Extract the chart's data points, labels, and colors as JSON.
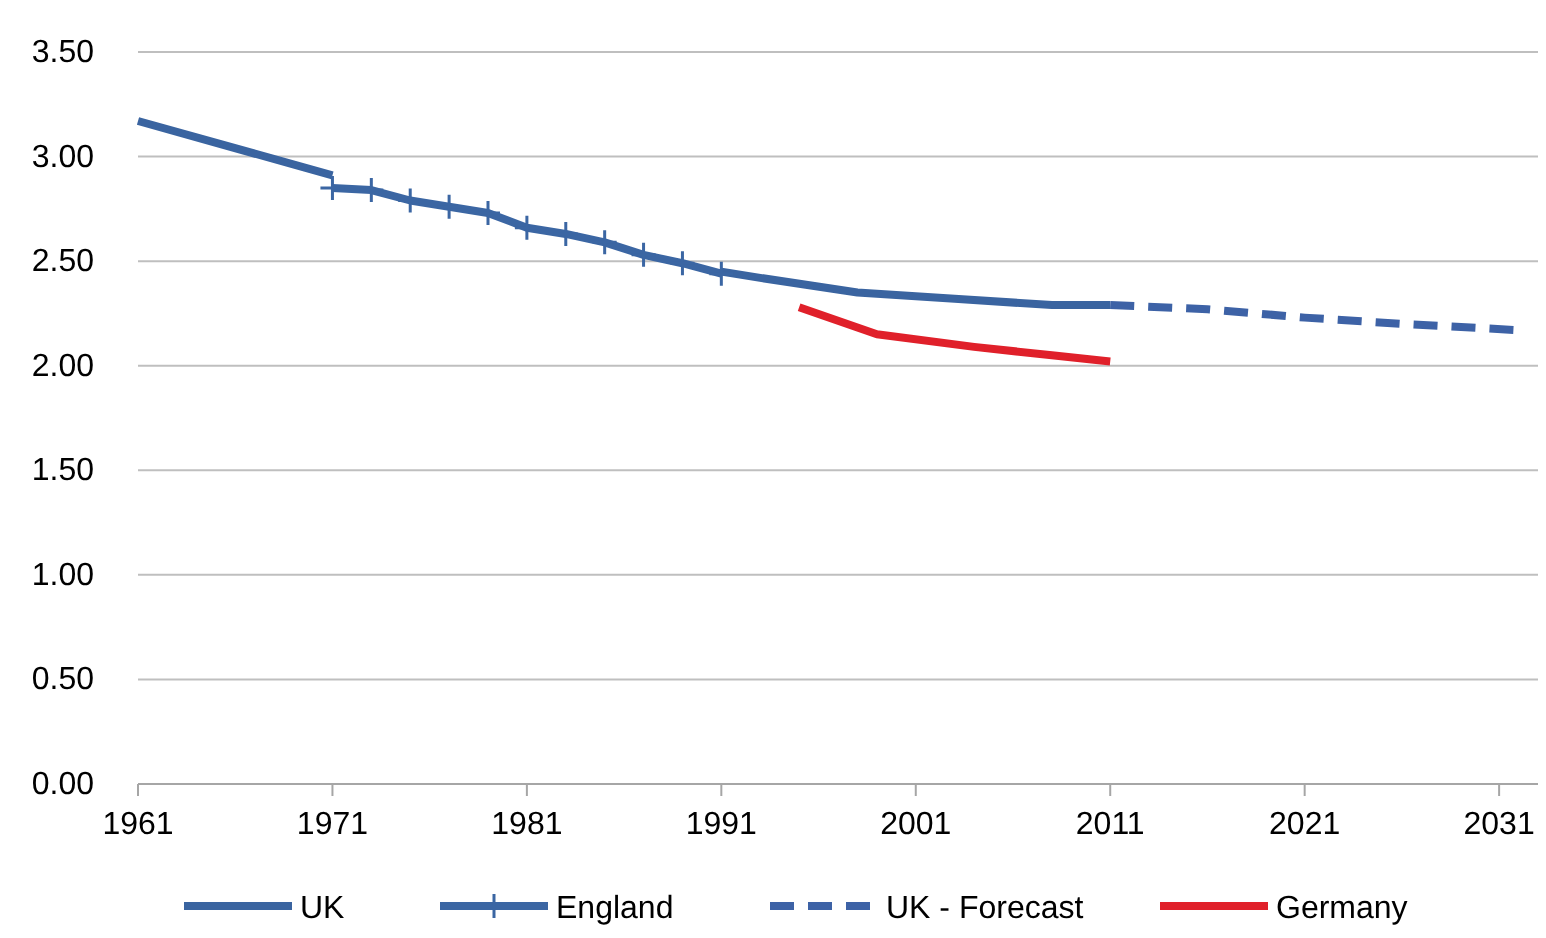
{
  "chart_data": {
    "type": "line",
    "xlim": [
      1961,
      2033
    ],
    "xticks": [
      1961,
      1971,
      1981,
      1991,
      2001,
      2011,
      2021,
      2031
    ],
    "ylim": [
      0,
      3.5
    ],
    "yticks": [
      {
        "value": 0,
        "label": "0.00"
      },
      {
        "value": 0.5,
        "label": "0.50"
      },
      {
        "value": 1,
        "label": "1.00"
      },
      {
        "value": 1.5,
        "label": "1.50"
      },
      {
        "value": 2,
        "label": "2.00"
      },
      {
        "value": 2.5,
        "label": "2.50"
      },
      {
        "value": 3,
        "label": "3.00"
      },
      {
        "value": 3.5,
        "label": "3.50"
      }
    ],
    "grid": "y",
    "legend": "bottom",
    "series": [
      {
        "name": "UK",
        "color": "#3a64a0",
        "x": [
          1961,
          1971,
          1981,
          1991,
          1993,
          1998,
          2003,
          2008,
          2011
        ],
        "values": [
          3.17,
          2.91,
          null,
          2.45,
          2.42,
          2.35,
          2.32,
          2.29,
          2.29
        ]
      },
      {
        "name": "England",
        "color": "#3b66a3",
        "marker": "cross",
        "x": [
          1971,
          1973,
          1975,
          1977,
          1979,
          1981,
          1983,
          1985,
          1987,
          1989,
          1991
        ],
        "values": [
          2.85,
          2.84,
          2.79,
          2.76,
          2.73,
          2.66,
          2.63,
          2.59,
          2.53,
          2.49,
          2.44
        ]
      },
      {
        "name": "UK - Forecast",
        "color": "#3d62a6",
        "line_style": "dashed",
        "x": [
          2011,
          2016,
          2021,
          2026,
          2032
        ],
        "values": [
          2.29,
          2.27,
          2.23,
          2.2,
          2.17
        ]
      },
      {
        "name": "Germany",
        "color": "#e0202a",
        "x": [
          1995,
          1999,
          2004,
          2008,
          2011
        ],
        "values": [
          2.28,
          2.15,
          2.09,
          2.05,
          2.02
        ]
      }
    ]
  }
}
